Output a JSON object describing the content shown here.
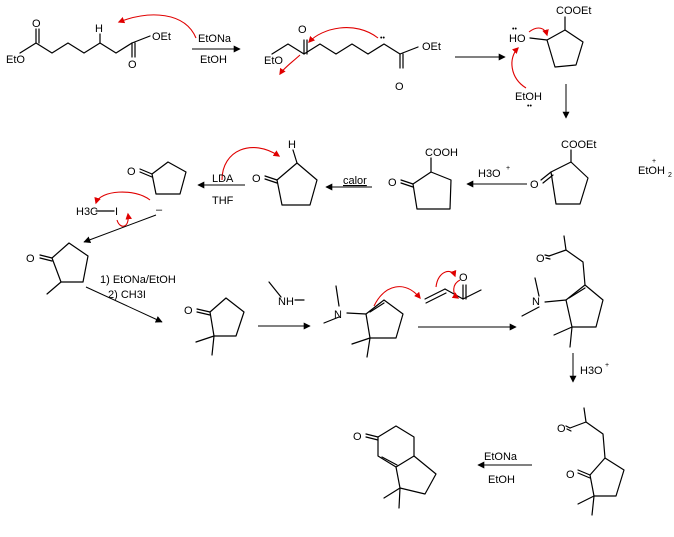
{
  "labels": {
    "EtO": "EtO",
    "OEt": "OEt",
    "O": "O",
    "H": "H",
    "HO": "HO",
    "EtOH": "EtOH",
    "COOEt": "COOEt",
    "COOH": "COOH",
    "N": "N",
    "I": "I",
    "H3C": "H3C",
    "EtOH2": "EtOH",
    "EtOH2_sub": "2",
    "plus": "+",
    "minus": "–",
    "lone_pair": "••"
  },
  "reagents": {
    "step1_top": "EtONa",
    "step1_bottom": "EtOH",
    "lda": "LDA",
    "thf": "THF",
    "calor": "calor",
    "h3o_a": "H3O",
    "h3o_b": "H3O",
    "h3o_plus": "+",
    "alkylation_1": "1) EtONa/EtOH",
    "alkylation_2": "2) CH3I",
    "final_top": "EtONa",
    "final_bottom": "EtOH"
  }
}
